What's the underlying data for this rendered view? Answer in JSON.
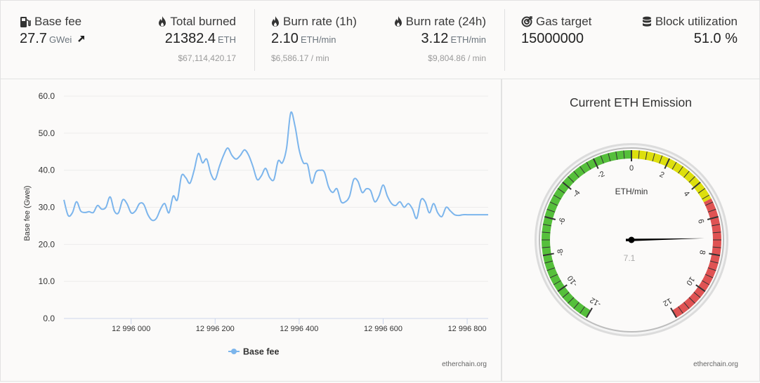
{
  "stats": {
    "base_fee": {
      "label": "Base fee",
      "value": "27.7",
      "unit": "GWei",
      "icon": "gas-pump-icon"
    },
    "total_burned": {
      "label": "Total burned",
      "value": "21382.4",
      "unit": "ETH",
      "usd": "$67,114,420.17",
      "icon": "flame-icon"
    },
    "burn_rate_1h": {
      "label": "Burn rate (1h)",
      "value": "2.10",
      "unit": "ETH/min",
      "usd": "$6,586.17 / min",
      "icon": "flame-icon"
    },
    "burn_rate_24h": {
      "label": "Burn rate (24h)",
      "value": "3.12",
      "unit": "ETH/min",
      "usd": "$9,804.86 / min",
      "icon": "flame-icon"
    },
    "gas_target": {
      "label": "Gas target",
      "value": "15000000",
      "icon": "target-icon"
    },
    "block_utilization": {
      "label": "Block utilization",
      "value": "51.0 %",
      "icon": "database-icon"
    }
  },
  "chart_data": {
    "type": "line",
    "ylabel": "Base fee (Gwei)",
    "ylim": [
      0,
      60
    ],
    "yticks": [
      "0.0",
      "10.0",
      "20.0",
      "30.0",
      "40.0",
      "50.0",
      "60.0"
    ],
    "xlim": [
      12995840,
      12996850
    ],
    "xticks": [
      12996000,
      12996200,
      12996400,
      12996600,
      12996800
    ],
    "xtick_labels": [
      "12 996 000",
      "12 996 200",
      "12 996 400",
      "12 996 600",
      "12 996 800"
    ],
    "series": [
      {
        "name": "Base fee",
        "color": "#7cb5ec",
        "x": [
          12995840,
          12995850,
          12995860,
          12995870,
          12995880,
          12995890,
          12995900,
          12995910,
          12995920,
          12995930,
          12995940,
          12995950,
          12995960,
          12995970,
          12995980,
          12995990,
          12996000,
          12996010,
          12996020,
          12996030,
          12996040,
          12996050,
          12996060,
          12996070,
          12996080,
          12996090,
          12996100,
          12996110,
          12996120,
          12996130,
          12996140,
          12996150,
          12996160,
          12996170,
          12996180,
          12996190,
          12996200,
          12996210,
          12996220,
          12996230,
          12996240,
          12996250,
          12996260,
          12996270,
          12996280,
          12996290,
          12996300,
          12996310,
          12996320,
          12996330,
          12996340,
          12996350,
          12996360,
          12996370,
          12996380,
          12996390,
          12996400,
          12996410,
          12996420,
          12996430,
          12996440,
          12996450,
          12996460,
          12996470,
          12996480,
          12996490,
          12996500,
          12996510,
          12996520,
          12996530,
          12996540,
          12996550,
          12996560,
          12996570,
          12996580,
          12996590,
          12996600,
          12996610,
          12996620,
          12996630,
          12996640,
          12996650,
          12996660,
          12996670,
          12996680,
          12996690,
          12996700,
          12996710,
          12996720,
          12996730,
          12996740,
          12996750,
          12996760,
          12996770,
          12996780,
          12996790,
          12996800,
          12996810,
          12996820,
          12996830,
          12996840,
          12996850
        ],
        "values": [
          32.0,
          27.8,
          28.5,
          31.5,
          29.0,
          28.6,
          28.8,
          28.6,
          30.5,
          29.5,
          30.0,
          32.8,
          29.0,
          28.5,
          32.0,
          31.0,
          28.5,
          29.0,
          31.0,
          30.8,
          28.0,
          26.5,
          27.0,
          29.5,
          31.0,
          28.5,
          33.0,
          32.0,
          38.5,
          38.0,
          36.5,
          40.0,
          44.5,
          42.0,
          43.0,
          39.0,
          37.5,
          41.0,
          44.0,
          46.0,
          44.0,
          43.0,
          44.0,
          45.5,
          44.0,
          41.0,
          37.5,
          38.5,
          40.5,
          38.0,
          37.5,
          42.5,
          42.0,
          46.0,
          55.5,
          52.0,
          45.5,
          42.0,
          41.5,
          36.5,
          39.5,
          40.0,
          39.5,
          35.5,
          34.0,
          35.0,
          31.5,
          31.5,
          33.0,
          37.5,
          37.0,
          34.0,
          35.0,
          34.5,
          31.5,
          33.0,
          36.0,
          33.0,
          31.0,
          30.5,
          31.5,
          30.0,
          31.0,
          29.5,
          27.0,
          32.0,
          31.5,
          28.5,
          31.0,
          28.5,
          27.5,
          30.0,
          29.0,
          28.0,
          27.8,
          28.0,
          28.0,
          28.0,
          28.0,
          28.0,
          28.0,
          28.0
        ]
      }
    ],
    "legend": "bottom-center",
    "grid": true
  },
  "gauge": {
    "title": "Current ETH Emission",
    "unit": "ETH/min",
    "value": 7.1,
    "value_label": "7.1",
    "min": -12,
    "max": 12,
    "ticks": [
      "-12",
      "-10",
      "-8",
      "-6",
      "-4",
      "-2",
      "0",
      "2",
      "4",
      "6",
      "8",
      "10",
      "12"
    ],
    "bands": [
      {
        "from": -12,
        "to": 0,
        "color": "#55BF3B"
      },
      {
        "from": 0,
        "to": 5,
        "color": "#DDDF0D"
      },
      {
        "from": 5,
        "to": 12,
        "color": "#DF5353"
      }
    ]
  },
  "credits": {
    "chart": "etherchain.org",
    "gauge": "etherchain.org"
  }
}
